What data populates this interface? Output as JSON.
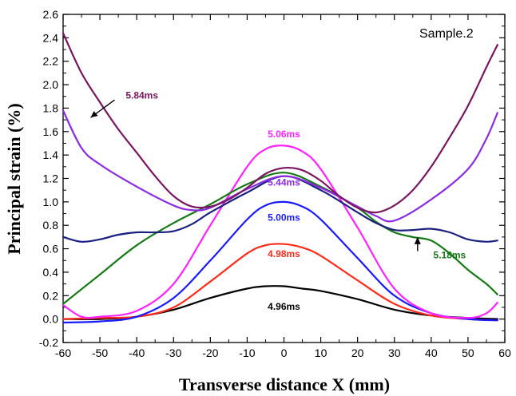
{
  "chart_data": {
    "type": "line",
    "title": "",
    "annotation": "Sample.2",
    "xlabel": "Transverse distance X (mm)",
    "ylabel": "Principal strain (%)",
    "xlim": [
      -60,
      60
    ],
    "ylim": [
      -0.2,
      2.6
    ],
    "xticks": [
      "-60",
      "-50",
      "-40",
      "-30",
      "-20",
      "-10",
      "0",
      "10",
      "20",
      "30",
      "40",
      "50",
      "60"
    ],
    "yticks": [
      "-0.2",
      "0.0",
      "0.2",
      "0.4",
      "0.6",
      "0.8",
      "1.0",
      "1.2",
      "1.4",
      "1.6",
      "1.8",
      "2.0",
      "2.2",
      "2.4",
      "2.6"
    ],
    "series": [
      {
        "name": "4.96ms",
        "color": "#000000",
        "x": [
          -60,
          -50,
          -40,
          -30,
          -20,
          -10,
          -5,
          0,
          5,
          10,
          20,
          30,
          40,
          50,
          58
        ],
        "y": [
          0.0,
          0.0,
          0.02,
          0.08,
          0.18,
          0.26,
          0.28,
          0.28,
          0.26,
          0.24,
          0.17,
          0.08,
          0.03,
          0.01,
          0.0
        ]
      },
      {
        "name": "4.98ms",
        "color": "#ff2a1a",
        "x": [
          -60,
          -50,
          -40,
          -30,
          -20,
          -10,
          -5,
          0,
          5,
          10,
          20,
          30,
          40,
          50,
          58
        ],
        "y": [
          0.0,
          0.01,
          0.02,
          0.1,
          0.32,
          0.56,
          0.63,
          0.64,
          0.61,
          0.54,
          0.33,
          0.13,
          0.03,
          0.0,
          -0.01
        ]
      },
      {
        "name": "5.00ms",
        "color": "#1a1aff",
        "x": [
          -60,
          -50,
          -40,
          -30,
          -20,
          -10,
          -5,
          0,
          5,
          10,
          20,
          30,
          40,
          50,
          58
        ],
        "y": [
          -0.03,
          -0.02,
          0.02,
          0.18,
          0.5,
          0.85,
          0.97,
          1.0,
          0.96,
          0.85,
          0.52,
          0.2,
          0.05,
          0.0,
          -0.01
        ]
      },
      {
        "name": "5.06ms",
        "color": "#ff22ff",
        "x": [
          -60,
          -55,
          -50,
          -40,
          -30,
          -20,
          -10,
          -5,
          0,
          5,
          10,
          20,
          30,
          40,
          50,
          55,
          58
        ],
        "y": [
          0.12,
          0.02,
          0.02,
          0.07,
          0.3,
          0.8,
          1.3,
          1.45,
          1.48,
          1.43,
          1.28,
          0.78,
          0.26,
          0.05,
          0.01,
          0.05,
          0.14
        ]
      },
      {
        "name": "5.18ms",
        "color": "#157a15",
        "x": [
          -60,
          -50,
          -40,
          -30,
          -20,
          -10,
          0,
          10,
          20,
          25,
          30,
          35,
          40,
          45,
          50,
          55,
          58
        ],
        "y": [
          0.13,
          0.38,
          0.63,
          0.82,
          0.98,
          1.15,
          1.25,
          1.13,
          0.95,
          0.83,
          0.74,
          0.7,
          0.67,
          0.56,
          0.42,
          0.3,
          0.21
        ]
      },
      {
        "name": "",
        "color": "#1a2080",
        "x": [
          -60,
          -55,
          -50,
          -45,
          -40,
          -35,
          -30,
          -25,
          -20,
          -10,
          0,
          10,
          20,
          25,
          30,
          35,
          40,
          45,
          50,
          55,
          58
        ],
        "y": [
          0.7,
          0.66,
          0.68,
          0.72,
          0.74,
          0.74,
          0.75,
          0.81,
          0.91,
          1.08,
          1.22,
          1.1,
          0.91,
          0.82,
          0.76,
          0.76,
          0.77,
          0.74,
          0.68,
          0.66,
          0.67
        ]
      },
      {
        "name": "5.44ms",
        "color": "#8c2be2",
        "x": [
          -60,
          -55,
          -50,
          -40,
          -30,
          -25,
          -20,
          -10,
          0,
          10,
          20,
          25,
          30,
          40,
          50,
          55,
          58
        ],
        "y": [
          1.78,
          1.46,
          1.32,
          1.13,
          0.97,
          0.93,
          0.95,
          1.11,
          1.22,
          1.12,
          0.96,
          0.88,
          0.84,
          1.02,
          1.28,
          1.54,
          1.76
        ]
      },
      {
        "name": "5.84ms",
        "color": "#7a1660",
        "x": [
          -60,
          -55,
          -50,
          -45,
          -40,
          -35,
          -30,
          -25,
          -20,
          -15,
          -10,
          -5,
          0,
          5,
          10,
          15,
          20,
          25,
          30,
          35,
          40,
          45,
          50,
          55,
          58
        ],
        "y": [
          2.44,
          2.1,
          1.85,
          1.62,
          1.42,
          1.22,
          1.05,
          0.96,
          0.96,
          1.02,
          1.12,
          1.24,
          1.29,
          1.27,
          1.18,
          1.05,
          0.95,
          0.91,
          0.97,
          1.1,
          1.3,
          1.55,
          1.82,
          2.15,
          2.34
        ]
      }
    ],
    "series_labels": [
      {
        "text": "4.96ms",
        "color": "#000000"
      },
      {
        "text": "4.98ms",
        "color": "#ff2a1a"
      },
      {
        "text": "5.00ms",
        "color": "#1a1aff"
      },
      {
        "text": "5.06ms",
        "color": "#ff22ff"
      },
      {
        "text": "5.18ms",
        "color": "#157a15"
      },
      {
        "text": "5.44ms",
        "color": "#8c2be2"
      },
      {
        "text": "5.84ms",
        "color": "#7a1660"
      }
    ],
    "grid": false,
    "legend": "none"
  }
}
